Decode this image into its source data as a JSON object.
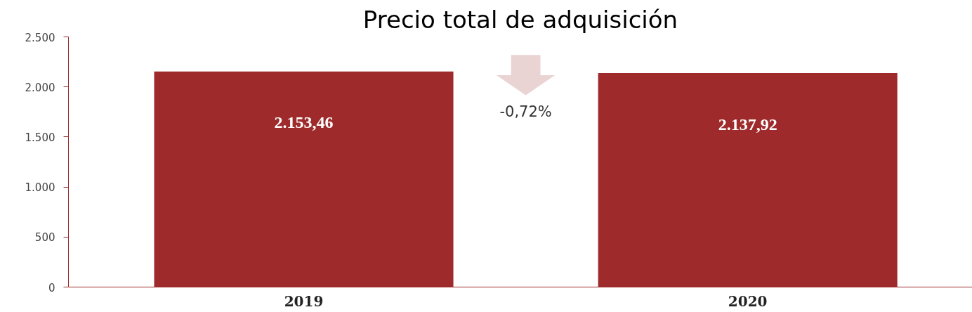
{
  "chart_data": {
    "type": "bar",
    "title": "Precio total de adquisición",
    "categories": [
      "2019",
      "2020"
    ],
    "values": [
      2153.46,
      2137.92
    ],
    "value_labels": [
      "2.153,46",
      "2.137,92"
    ],
    "color": "#9e2a2b",
    "ylim": [
      0,
      2500
    ],
    "yticks": [
      {
        "value": 0,
        "label": "0"
      },
      {
        "value": 500,
        "label": "500"
      },
      {
        "value": 1000,
        "label": "1.000"
      },
      {
        "value": 1500,
        "label": "1.500"
      },
      {
        "value": 2000,
        "label": "2.000"
      },
      {
        "value": 2500,
        "label": "2.500"
      }
    ],
    "annotations": [
      "-0,72%"
    ],
    "grid": false
  }
}
